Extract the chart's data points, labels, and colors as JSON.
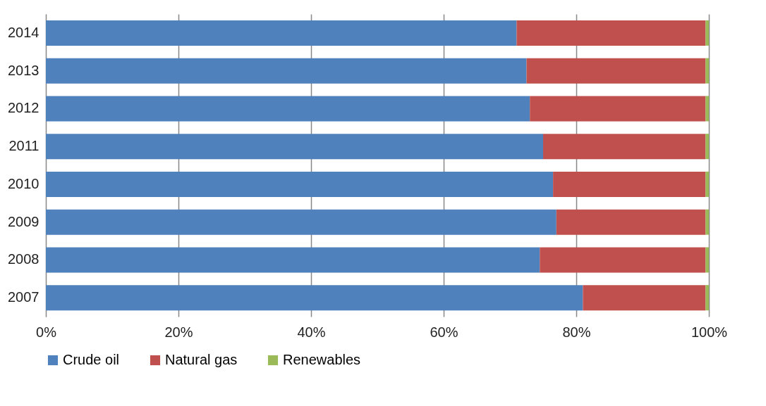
{
  "chart_data": {
    "type": "bar",
    "orientation": "horizontal",
    "stacked": true,
    "categories": [
      "2014",
      "2013",
      "2012",
      "2011",
      "2010",
      "2009",
      "2008",
      "2007"
    ],
    "series": [
      {
        "name": "Crude oil",
        "color": "#4f81bd",
        "values": [
          71,
          72.5,
          73,
          75,
          76.5,
          77,
          74.5,
          81
        ]
      },
      {
        "name": "Natural gas",
        "color": "#c0504d",
        "values": [
          28.5,
          27,
          26.5,
          24.5,
          23,
          22.5,
          25,
          18.5
        ]
      },
      {
        "name": "Renewables",
        "color": "#9bbb59",
        "values": [
          0.5,
          0.5,
          0.5,
          0.5,
          0.5,
          0.5,
          0.5,
          0.5
        ]
      }
    ],
    "xlim": [
      0,
      100
    ],
    "xticks": [
      {
        "value": 0,
        "label": "0%"
      },
      {
        "value": 20,
        "label": "20%"
      },
      {
        "value": 40,
        "label": "40%"
      },
      {
        "value": 60,
        "label": "60%"
      },
      {
        "value": 80,
        "label": "80%"
      },
      {
        "value": 100,
        "label": "100%"
      }
    ],
    "grid": "x",
    "legend": "bottom"
  }
}
